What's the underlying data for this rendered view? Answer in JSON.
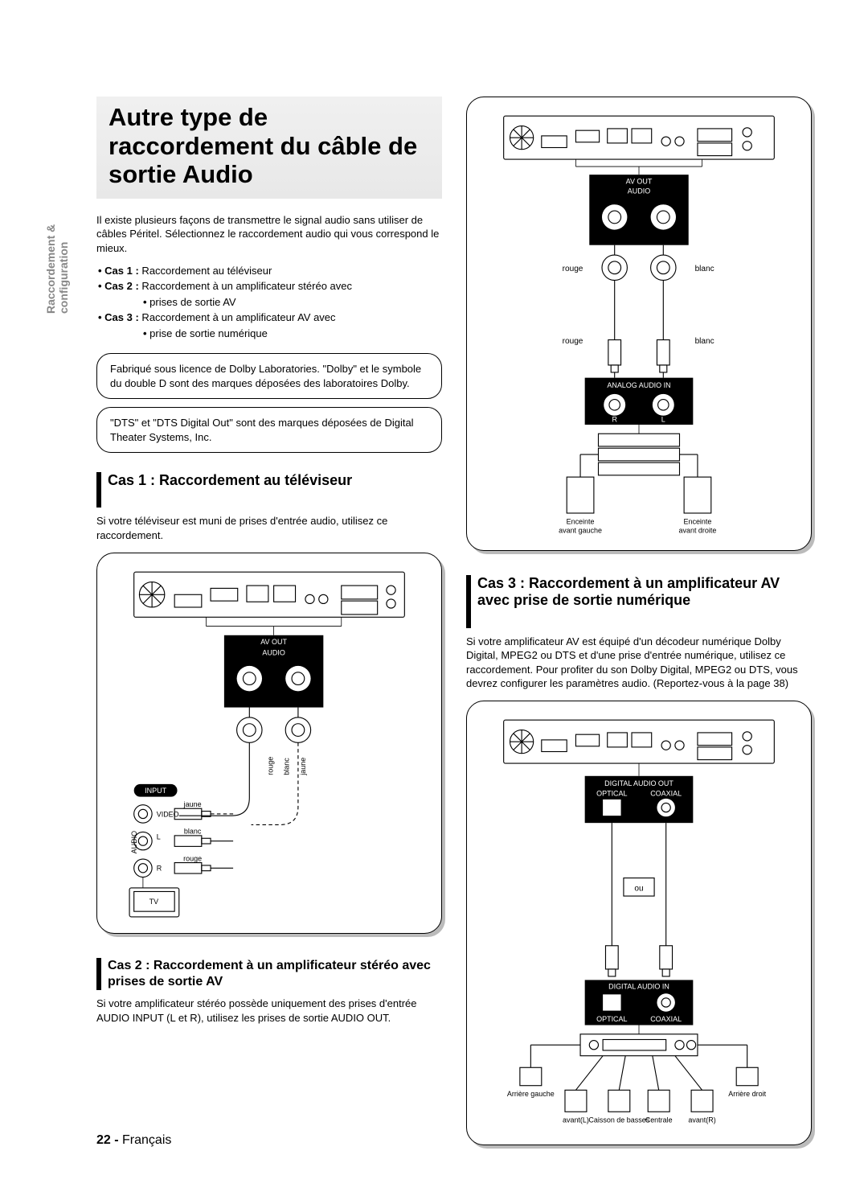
{
  "side_tab": "Raccordement &\nconfiguration",
  "title": "Autre type de raccordement du câble de sortie Audio",
  "intro": "Il existe plusieurs façons de transmettre le signal audio sans utiliser de câbles Péritel. Sélectionnez le raccordement audio qui vous correspond le mieux.",
  "bullets": {
    "b1_label": "Cas 1 :",
    "b1_text": " Raccordement au téléviseur",
    "b2_label": "Cas 2 :",
    "b2_text": " Raccordement à un amplificateur stéréo avec",
    "b2_cont": "prises de sortie AV",
    "b3_label": "Cas 3 :",
    "b3_text": " Raccordement à un amplificateur AV avec",
    "b3_cont": "prise de sortie numérique"
  },
  "note1": "Fabriqué sous licence de Dolby Laboratories. \"Dolby\" et le symbole du double D sont des marques déposées des laboratoires Dolby.",
  "note2": "\"DTS\" et \"DTS Digital Out\" sont des marques déposées de Digital Theater Systems, Inc.",
  "cas1": {
    "heading": "Cas 1 : Raccordement au téléviseur",
    "body": "Si votre téléviseur est muni de prises d'entrée audio, utilisez ce raccordement."
  },
  "cas2": {
    "heading": "Cas 2 : Raccordement à un amplificateur stéréo avec prises de sortie AV",
    "body": "Si votre amplificateur stéréo possède uniquement des prises d'entrée AUDIO INPUT (L et R), utilisez les prises de sortie AUDIO OUT."
  },
  "cas3": {
    "heading": "Cas 3 : Raccordement à un amplificateur AV avec prise de sortie numérique",
    "body": "Si votre amplificateur AV est équipé d'un décodeur numérique Dolby Digital, MPEG2 ou DTS et d'une prise d'entrée numérique, utilisez ce raccordement. Pour profiter du son Dolby Digital, MPEG2 ou DTS, vous devrez configurer les paramètres audio. (Reportez-vous à la page 38)"
  },
  "diagram1": {
    "av_out": "AV OUT",
    "audio": "AUDIO",
    "input": "INPUT",
    "video": "VIDEO",
    "l": "L",
    "r": "R",
    "tv": "TV",
    "jaune": "jaune",
    "blanc": "blanc",
    "rouge": "rouge"
  },
  "diagram2": {
    "av_out": "AV OUT",
    "audio": "AUDIO",
    "analog_in": "ANALOG AUDIO IN",
    "r": "R",
    "l": "L",
    "rouge": "rouge",
    "blanc": "blanc",
    "enc_gauche": "Enceinte\navant gauche",
    "enc_droite": "Enceinte\navant droite"
  },
  "diagram3": {
    "digital_out": "DIGITAL AUDIO OUT",
    "optical": "OPTICAL",
    "coaxial": "COAXIAL",
    "ou": "ou",
    "digital_in": "DIGITAL AUDIO IN",
    "arr_gauche": "Arrière gauche",
    "arr_droit": "Arrière droit",
    "avant_l": "avant(L)",
    "avant_r": "avant(R)",
    "caisson": "Caisson de basses",
    "centrale": "Centrale"
  },
  "footer": {
    "page": "22 -",
    "lang": " Français"
  },
  "colors": {
    "text": "#000000",
    "bg": "#ffffff",
    "side_tab": "#888888",
    "title_bg_top": "#f0f0f0",
    "title_bg_bot": "#e8e8e8",
    "shadow": "#bbbbbb"
  }
}
